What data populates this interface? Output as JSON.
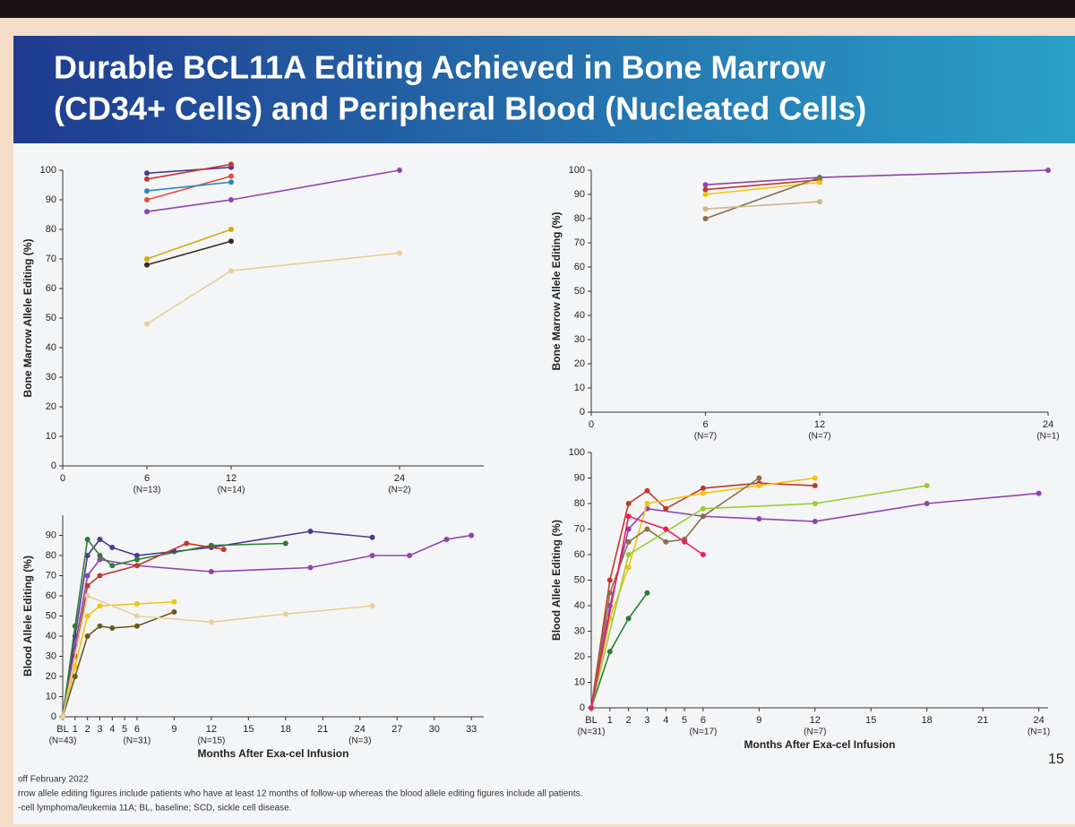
{
  "slide": {
    "title_lines": [
      "Durable BCL11A Editing Achieved in Bone Marrow",
      "(CD34+ Cells) and Peripheral Blood (Nucleated Cells)"
    ],
    "footnotes": [
      "off February 2022",
      "rrow allele editing figures include patients who have at least 12 months of follow-up whereas the blood allele editing figures include all patients.",
      "-cell lymphoma/leukemia 11A; BL, baseline; SCD, sickle cell disease."
    ],
    "page_number": "15"
  },
  "chart_data": [
    {
      "type": "line",
      "ylabel": "Bone Marrow Allele Editing (%)",
      "xlim": [
        0,
        30
      ],
      "xticks": [
        0,
        6,
        12,
        24
      ],
      "tick_notes": [
        {
          "value": 6,
          "label": "(N=13)"
        },
        {
          "value": 12,
          "label": "(N=14)"
        },
        {
          "value": 24,
          "label": "(N=2)"
        }
      ],
      "ylim": [
        0,
        100
      ],
      "yticks": [
        0,
        10,
        20,
        30,
        40,
        50,
        60,
        70,
        80,
        90,
        100
      ],
      "series": [
        {
          "color": "#4b3a8f",
          "x": [
            6,
            12
          ],
          "values": [
            99,
            101
          ]
        },
        {
          "color": "#c0392b",
          "x": [
            6,
            12
          ],
          "values": [
            97,
            102
          ]
        },
        {
          "color": "#e74c3c",
          "x": [
            6,
            12
          ],
          "values": [
            90,
            98
          ]
        },
        {
          "color": "#2e86c1",
          "x": [
            6,
            12
          ],
          "values": [
            93,
            96
          ]
        },
        {
          "color": "#8e44ad",
          "x": [
            6,
            12,
            24
          ],
          "values": [
            86,
            90,
            100
          ]
        },
        {
          "color": "#d4ac0d",
          "x": [
            6,
            12
          ],
          "values": [
            70,
            80
          ]
        },
        {
          "color": "#3b2a1a",
          "x": [
            6,
            12
          ],
          "values": [
            68,
            76
          ]
        },
        {
          "color": "#e8cf9a",
          "x": [
            6,
            12,
            24
          ],
          "values": [
            48,
            66,
            72
          ]
        }
      ]
    },
    {
      "type": "line",
      "ylabel": "Bone Marrow Allele Editing (%)",
      "xlim": [
        0,
        24
      ],
      "xticks": [
        0,
        6,
        12,
        24
      ],
      "tick_notes": [
        {
          "value": 6,
          "label": "(N=7)"
        },
        {
          "value": 12,
          "label": "(N=7)"
        },
        {
          "value": 24,
          "label": "(N=1)"
        }
      ],
      "ylim": [
        0,
        100
      ],
      "yticks": [
        0,
        10,
        20,
        30,
        40,
        50,
        60,
        70,
        80,
        90,
        100
      ],
      "series": [
        {
          "color": "#8e44ad",
          "x": [
            6,
            12,
            24
          ],
          "values": [
            94,
            97,
            100
          ]
        },
        {
          "color": "#c0392b",
          "x": [
            6,
            12
          ],
          "values": [
            92,
            96
          ]
        },
        {
          "color": "#f1c40f",
          "x": [
            6,
            12
          ],
          "values": [
            90,
            95
          ]
        },
        {
          "color": "#8b6f47",
          "x": [
            6,
            12
          ],
          "values": [
            80,
            97
          ]
        },
        {
          "color": "#d2b48c",
          "x": [
            6,
            12
          ],
          "values": [
            84,
            87
          ]
        }
      ]
    },
    {
      "type": "line",
      "ylabel": "Blood Allele Editing (%)",
      "xlabel": "Months After Exa-cel Infusion",
      "xlim": [
        0,
        34
      ],
      "xticks": [
        {
          "value": 0,
          "label": "BL"
        },
        1,
        2,
        3,
        4,
        5,
        6,
        9,
        12,
        15,
        18,
        21,
        24,
        27,
        30,
        33
      ],
      "tick_notes": [
        {
          "value": 0,
          "label": "(N=43)"
        },
        {
          "value": 6,
          "label": "(N=31)"
        },
        {
          "value": 12,
          "label": "(N=15)"
        },
        {
          "value": 24,
          "label": "(N=3)"
        }
      ],
      "ylim": [
        0,
        100
      ],
      "yticks": [
        0,
        10,
        20,
        30,
        40,
        50,
        60,
        70,
        80,
        90
      ],
      "series": [
        {
          "color": "#4b3a8f",
          "x": [
            0,
            1,
            2,
            3,
            4,
            6,
            9,
            12,
            20,
            25
          ],
          "values": [
            0,
            40,
            80,
            88,
            84,
            80,
            82,
            84,
            92,
            89
          ]
        },
        {
          "color": "#8e44ad",
          "x": [
            0,
            1,
            2,
            3,
            6,
            12,
            20,
            25,
            28,
            31,
            33
          ],
          "values": [
            0,
            35,
            70,
            78,
            75,
            72,
            74,
            80,
            80,
            88,
            90
          ]
        },
        {
          "color": "#2e7d32",
          "x": [
            0,
            1,
            2,
            3,
            4,
            6,
            12,
            18
          ],
          "values": [
            0,
            45,
            88,
            80,
            75,
            78,
            85,
            86
          ]
        },
        {
          "color": "#c0392b",
          "x": [
            0,
            1,
            2,
            3,
            6,
            10,
            13
          ],
          "values": [
            0,
            30,
            65,
            70,
            75,
            86,
            83
          ]
        },
        {
          "color": "#f1c40f",
          "x": [
            0,
            1,
            2,
            3,
            6,
            9
          ],
          "values": [
            0,
            25,
            50,
            55,
            56,
            57
          ]
        },
        {
          "color": "#6b5a1e",
          "x": [
            0,
            1,
            2,
            3,
            4,
            6,
            9
          ],
          "values": [
            0,
            20,
            40,
            45,
            44,
            45,
            52
          ]
        },
        {
          "color": "#e8cf9a",
          "x": [
            0,
            2,
            6,
            12,
            18,
            25
          ],
          "values": [
            0,
            60,
            50,
            47,
            51,
            55
          ]
        }
      ]
    },
    {
      "type": "line",
      "ylabel": "Blood Allele Editing (%)",
      "xlabel": "Months After Exa-cel Infusion",
      "xlim": [
        0,
        24.5
      ],
      "xticks": [
        {
          "value": 0,
          "label": "BL"
        },
        1,
        2,
        3,
        4,
        5,
        6,
        9,
        12,
        15,
        18,
        21,
        24
      ],
      "tick_notes": [
        {
          "value": 0,
          "label": "(N=31)"
        },
        {
          "value": 6,
          "label": "(N=17)"
        },
        {
          "value": 12,
          "label": "(N=7)"
        },
        {
          "value": 24,
          "label": "(N=1)"
        }
      ],
      "ylim": [
        0,
        100
      ],
      "yticks": [
        0,
        10,
        20,
        30,
        40,
        50,
        60,
        70,
        80,
        90,
        100
      ],
      "series": [
        {
          "color": "#8e44ad",
          "x": [
            0,
            1,
            2,
            3,
            6,
            9,
            12,
            18,
            24
          ],
          "values": [
            0,
            40,
            70,
            78,
            75,
            74,
            73,
            80,
            84
          ]
        },
        {
          "color": "#2e7d32",
          "x": [
            0,
            1,
            2,
            3
          ],
          "values": [
            0,
            22,
            35,
            45
          ]
        },
        {
          "color": "#c0392b",
          "x": [
            0,
            1,
            2,
            3,
            4,
            6,
            9,
            12
          ],
          "values": [
            0,
            50,
            80,
            85,
            78,
            86,
            88,
            87
          ]
        },
        {
          "color": "#f1c40f",
          "x": [
            0,
            1,
            2,
            3,
            6,
            9,
            12
          ],
          "values": [
            0,
            35,
            55,
            80,
            84,
            87,
            90
          ]
        },
        {
          "color": "#8b6f47",
          "x": [
            0,
            1,
            2,
            3,
            4,
            5,
            6,
            9
          ],
          "values": [
            0,
            45,
            65,
            70,
            65,
            66,
            75,
            90
          ]
        },
        {
          "color": "#9acd32",
          "x": [
            0,
            2,
            6,
            12,
            18
          ],
          "values": [
            0,
            60,
            78,
            80,
            87
          ]
        },
        {
          "color": "#e91e63",
          "x": [
            0,
            2,
            4,
            5,
            6
          ],
          "values": [
            0,
            75,
            70,
            65,
            60
          ]
        }
      ]
    }
  ]
}
